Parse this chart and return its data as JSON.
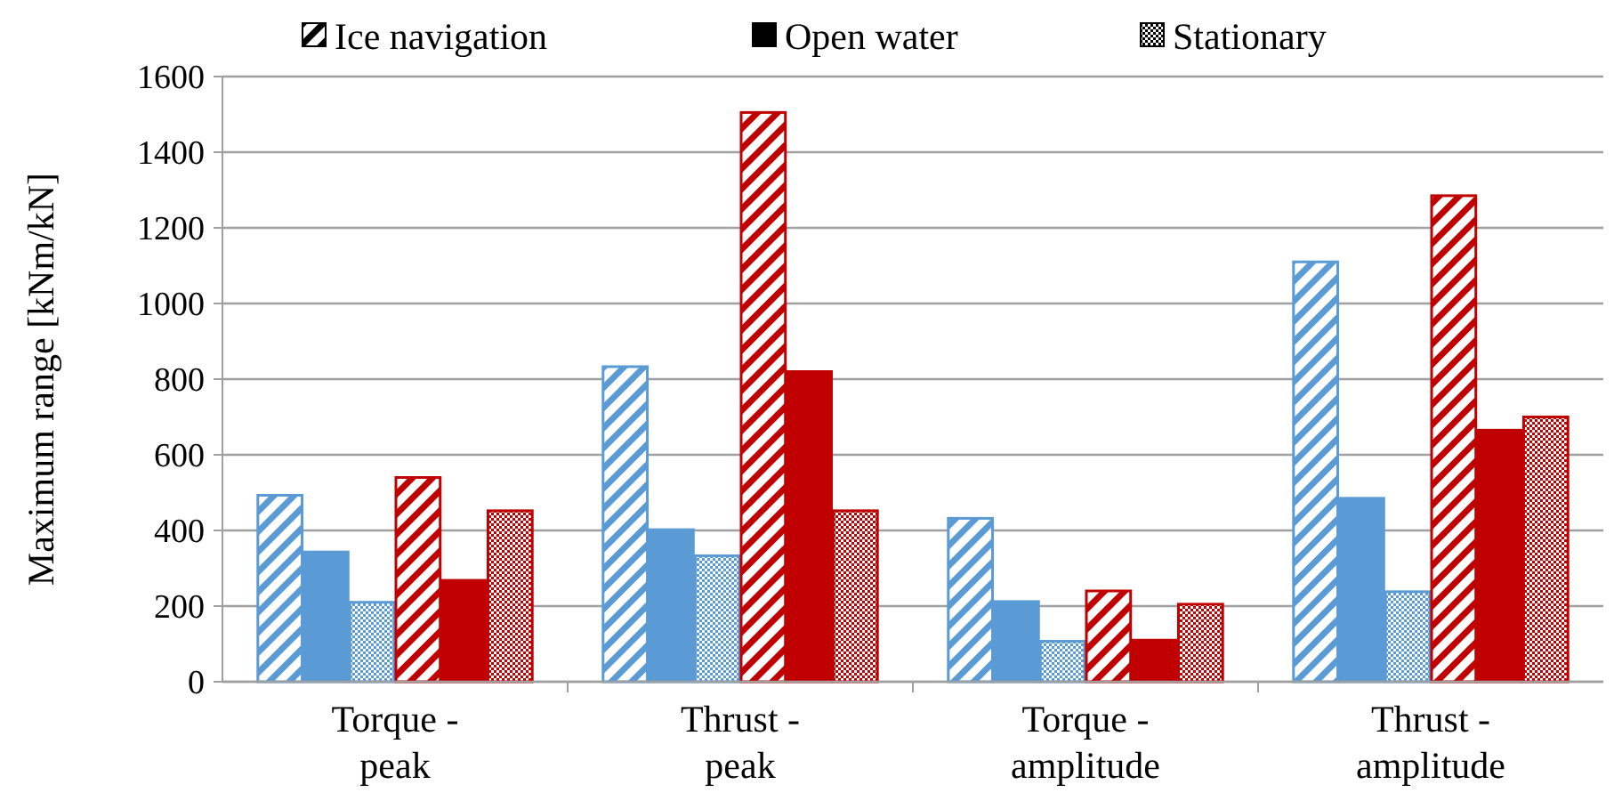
{
  "chart_data": {
    "type": "bar",
    "ylabel": "Maximum range [kNm/kN]",
    "annotations": [
      "Ice navigation",
      "Open water",
      "Stationary"
    ],
    "categories": [
      "Torque -\npeak",
      "Thrust -\npeak",
      "Torque -\namplitude",
      "Thrust -\namplitude"
    ],
    "series": [
      {
        "color": "#5b9bd5",
        "values": [
          493,
          833,
          432,
          1110
        ]
      },
      {
        "color": "#5b9bd5",
        "values": [
          343,
          402,
          212,
          485
        ]
      },
      {
        "color": "#5b9bd5",
        "values": [
          210,
          333,
          107,
          238
        ]
      },
      {
        "color": "#c00000",
        "values": [
          540,
          1505,
          240,
          1285
        ]
      },
      {
        "color": "#c00000",
        "values": [
          268,
          820,
          110,
          665
        ]
      },
      {
        "color": "#c00000",
        "values": [
          452,
          452,
          205,
          700
        ]
      }
    ],
    "ylim": [
      0,
      1600
    ],
    "yticks": [
      0,
      200,
      400,
      600,
      800,
      1000,
      1200,
      1400,
      1600
    ],
    "grid": "y"
  }
}
